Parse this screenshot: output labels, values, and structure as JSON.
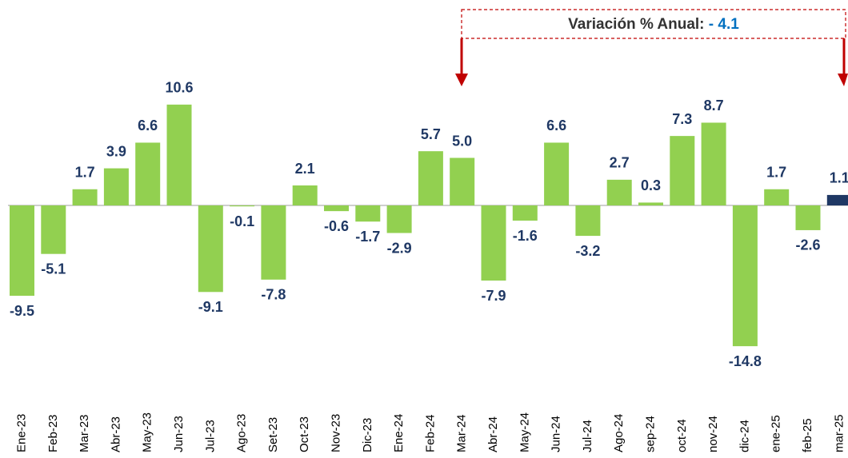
{
  "chart_data": {
    "type": "bar",
    "annotation": {
      "text": "Variación % Anual:",
      "value": "- 4.1"
    },
    "categories": [
      "Ene-23",
      "Feb-23",
      "Mar-23",
      "Abr-23",
      "May-23",
      "Jun-23",
      "Jul-23",
      "Ago-23",
      "Set-23",
      "Oct-23",
      "Nov-23",
      "Dic-23",
      "Ene-24",
      "Feb-24",
      "Mar-24",
      "Abr-24",
      "May-24",
      "Jun-24",
      "Jul-24",
      "Ago-24",
      "sep-24",
      "oct-24",
      "nov-24",
      "dic-24",
      "ene-25",
      "feb-25",
      "mar-25"
    ],
    "values": [
      -9.5,
      -5.1,
      1.7,
      3.9,
      6.6,
      10.6,
      -9.1,
      -0.1,
      -7.8,
      2.1,
      -0.6,
      -1.7,
      -2.9,
      5.7,
      5.0,
      -7.9,
      -1.6,
      6.6,
      -3.2,
      2.7,
      0.3,
      7.3,
      8.7,
      -14.8,
      1.7,
      -2.6,
      1.1
    ],
    "value_labels": [
      "-9.5",
      "-5.1",
      "1.7",
      "3.9",
      "6.6",
      "10.6",
      "-9.1",
      "-0.1",
      "-7.8",
      "2.1",
      "-0.6",
      "-1.7",
      "-2.9",
      "5.7",
      "5.0",
      "-7.9",
      "-1.6",
      "6.6",
      "-3.2",
      "2.7",
      "0.3",
      "7.3",
      "8.7",
      "-14.8",
      "1.7",
      "-2.6",
      "1.1"
    ],
    "colors": [
      "#92d050",
      "#92d050",
      "#92d050",
      "#92d050",
      "#92d050",
      "#92d050",
      "#92d050",
      "#92d050",
      "#92d050",
      "#92d050",
      "#92d050",
      "#92d050",
      "#92d050",
      "#92d050",
      "#92d050",
      "#92d050",
      "#92d050",
      "#92d050",
      "#92d050",
      "#92d050",
      "#92d050",
      "#92d050",
      "#92d050",
      "#92d050",
      "#92d050",
      "#92d050",
      "#1f3864"
    ]
  }
}
